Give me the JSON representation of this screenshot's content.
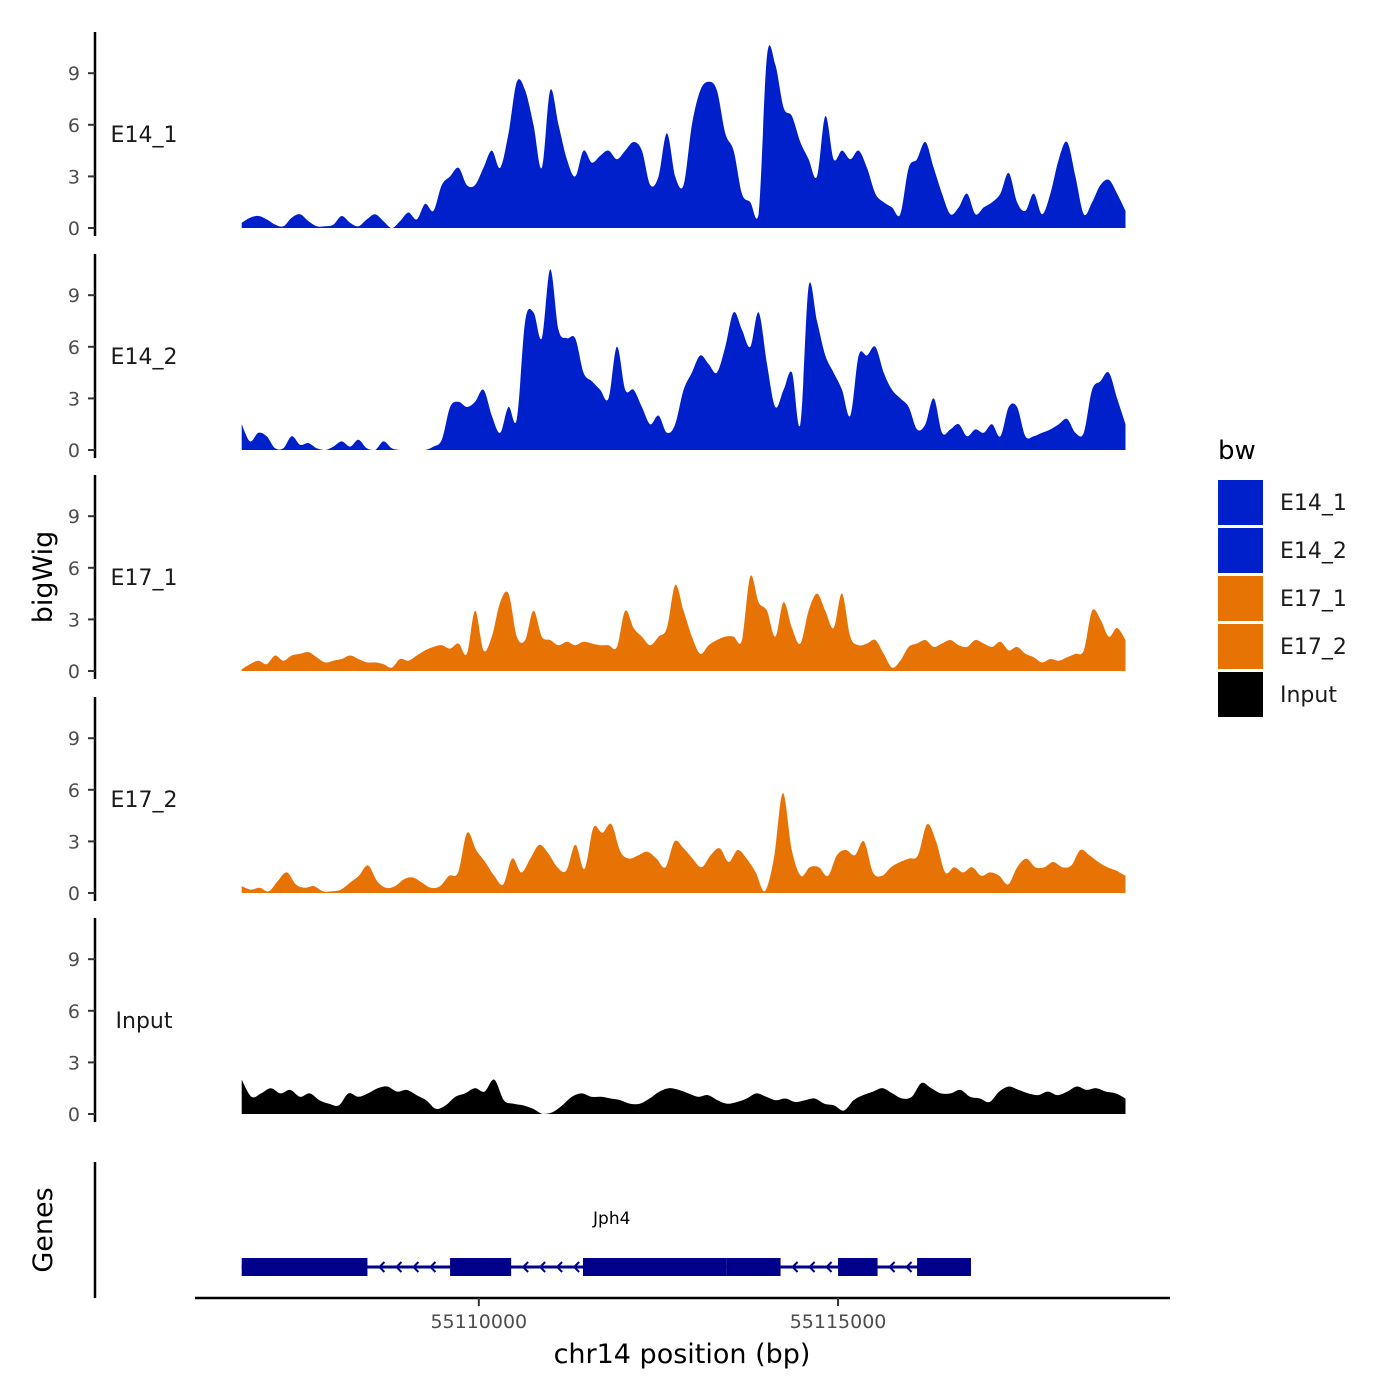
{
  "chart_data": {
    "type": "area",
    "title": "",
    "xlabel": "chr14 position (bp)",
    "ylabel": "bigWig",
    "genes_label": "Genes",
    "xlim": [
      55106050,
      55119620
    ],
    "x_ticks": [
      55110000,
      55115000
    ],
    "x_tick_labels": [
      "55110000",
      "55115000"
    ],
    "ylim": [
      0,
      11.5
    ],
    "y_ticks": [
      0,
      3,
      6,
      9
    ],
    "y_tick_labels": [
      "0",
      "3",
      "6",
      "9"
    ],
    "legend": {
      "title": "bw",
      "position": "right",
      "entries": [
        {
          "name": "E14_1",
          "color": "#0020CC"
        },
        {
          "name": "E14_2",
          "color": "#0020CC"
        },
        {
          "name": "E17_1",
          "color": "#E87305"
        },
        {
          "name": "E17_2",
          "color": "#E87305"
        },
        {
          "name": "Input",
          "color": "#000000"
        }
      ]
    },
    "x_start": 55106700,
    "x_end": 55119000,
    "series": [
      {
        "name": "E14_1",
        "label": "E14_1",
        "color": "#0020CC",
        "values": [
          0.3,
          0.6,
          0.7,
          0.5,
          0.2,
          0.1,
          0.6,
          0.8,
          0.4,
          0.1,
          0.1,
          0.2,
          0.7,
          0.3,
          0.1,
          0.5,
          0.8,
          0.4,
          0.0,
          0.4,
          0.9,
          0.5,
          1.4,
          1.0,
          2.5,
          3.0,
          3.5,
          2.5,
          2.5,
          3.5,
          4.5,
          3.5,
          5.5,
          8.5,
          8.0,
          6.0,
          3.5,
          8.0,
          6.0,
          4.0,
          3.0,
          4.5,
          3.8,
          4.2,
          4.5,
          4.0,
          4.5,
          5.0,
          4.5,
          2.5,
          3.0,
          5.5,
          3.0,
          2.5,
          6.0,
          8.0,
          8.5,
          8.0,
          5.5,
          4.5,
          2.0,
          1.5,
          0.8,
          10.0,
          9.5,
          7.0,
          6.5,
          5.0,
          4.0,
          3.0,
          6.5,
          4.0,
          4.5,
          4.0,
          4.5,
          3.5,
          2.0,
          1.5,
          1.2,
          0.8,
          3.5,
          4.0,
          5.0,
          3.5,
          2.0,
          0.8,
          1.2,
          2.0,
          0.8,
          1.2,
          1.5,
          2.0,
          3.2,
          1.5,
          1.0,
          2.0,
          0.8,
          2.0,
          4.0,
          5.0,
          3.0,
          0.8,
          1.5,
          2.5,
          2.8,
          2.0,
          1.0
        ]
      },
      {
        "name": "E14_2",
        "label": "E14_2",
        "color": "#0020CC",
        "values": [
          1.5,
          0.5,
          1.0,
          0.8,
          0.1,
          0.1,
          0.8,
          0.3,
          0.4,
          0.1,
          0.0,
          0.2,
          0.5,
          0.2,
          0.6,
          0.1,
          0.0,
          0.5,
          0.1,
          0.0,
          0.0,
          0.0,
          0.0,
          0.2,
          0.6,
          2.5,
          2.8,
          2.5,
          2.8,
          3.5,
          2.0,
          1.0,
          2.5,
          1.8,
          7.5,
          8.0,
          6.5,
          10.5,
          7.0,
          6.5,
          6.5,
          4.5,
          4.0,
          3.5,
          3.0,
          6.0,
          3.5,
          3.5,
          2.5,
          1.5,
          2.0,
          1.0,
          1.5,
          3.5,
          4.5,
          5.5,
          5.0,
          4.5,
          6.0,
          8.0,
          7.0,
          6.0,
          8.0,
          5.0,
          2.5,
          3.5,
          4.5,
          1.5,
          9.5,
          7.5,
          5.5,
          4.5,
          3.5,
          2.0,
          5.5,
          5.5,
          6.0,
          4.5,
          3.5,
          3.0,
          2.5,
          1.2,
          1.5,
          3.0,
          1.0,
          1.2,
          1.5,
          0.8,
          1.2,
          1.0,
          1.5,
          0.8,
          2.5,
          2.5,
          0.8,
          0.8,
          1.0,
          1.2,
          1.5,
          1.8,
          1.0,
          1.0,
          3.5,
          4.0,
          4.5,
          3.0,
          1.5
        ]
      },
      {
        "name": "E17_1",
        "label": "E17_1",
        "color": "#E87305",
        "values": [
          0.1,
          0.4,
          0.6,
          0.4,
          0.9,
          0.6,
          0.9,
          1.0,
          1.1,
          0.8,
          0.5,
          0.6,
          0.7,
          0.9,
          0.7,
          0.5,
          0.5,
          0.4,
          0.2,
          0.7,
          0.6,
          0.9,
          1.2,
          1.4,
          1.5,
          1.3,
          1.6,
          1.0,
          3.5,
          1.2,
          2.0,
          4.0,
          4.5,
          2.0,
          1.8,
          3.5,
          2.0,
          1.8,
          1.5,
          1.7,
          1.5,
          1.7,
          1.6,
          1.5,
          1.5,
          1.4,
          3.5,
          2.5,
          2.0,
          1.5,
          2.0,
          2.5,
          5.0,
          3.5,
          2.0,
          1.0,
          1.5,
          1.8,
          2.0,
          2.0,
          1.8,
          5.5,
          4.0,
          3.5,
          2.0,
          4.0,
          2.5,
          1.6,
          3.5,
          4.5,
          3.5,
          2.5,
          4.5,
          2.0,
          1.5,
          1.6,
          1.8,
          1.0,
          0.2,
          0.6,
          1.4,
          1.6,
          1.8,
          1.4,
          1.6,
          1.8,
          1.5,
          1.4,
          1.8,
          1.6,
          1.4,
          1.7,
          1.2,
          1.4,
          1.0,
          0.8,
          0.5,
          0.7,
          0.6,
          0.8,
          1.0,
          1.2,
          3.5,
          3.0,
          2.0,
          2.5,
          1.8
        ]
      },
      {
        "name": "E17_2",
        "label": "E17_2",
        "color": "#E87305",
        "values": [
          0.4,
          0.2,
          0.3,
          0.1,
          0.7,
          1.2,
          0.5,
          0.3,
          0.4,
          0.1,
          0.1,
          0.2,
          0.6,
          1.0,
          1.6,
          0.7,
          0.3,
          0.4,
          0.8,
          0.9,
          0.6,
          0.3,
          0.4,
          1.0,
          1.2,
          3.5,
          2.5,
          1.8,
          1.0,
          0.5,
          2.0,
          1.2,
          2.0,
          2.8,
          2.3,
          1.5,
          1.3,
          2.8,
          1.4,
          3.8,
          3.5,
          4.0,
          2.4,
          2.0,
          2.2,
          2.4,
          2.0,
          1.5,
          3.0,
          2.6,
          2.0,
          1.5,
          2.2,
          2.6,
          1.8,
          2.5,
          2.0,
          1.2,
          0.1,
          2.0,
          5.8,
          2.5,
          1.0,
          1.5,
          1.5,
          1.0,
          2.2,
          2.5,
          2.2,
          3.0,
          1.2,
          1.0,
          1.5,
          1.8,
          2.0,
          2.2,
          4.0,
          3.0,
          1.2,
          1.5,
          1.2,
          1.5,
          1.0,
          1.2,
          1.0,
          0.5,
          1.5,
          2.0,
          1.5,
          1.5,
          1.8,
          1.5,
          1.6,
          2.5,
          2.2,
          1.8,
          1.5,
          1.3,
          1.0
        ]
      },
      {
        "name": "Input",
        "label": "Input",
        "color": "#000000",
        "values": [
          2.0,
          1.0,
          1.2,
          1.5,
          1.2,
          1.4,
          1.0,
          1.2,
          0.8,
          0.6,
          0.5,
          1.2,
          1.0,
          1.2,
          1.5,
          1.6,
          1.3,
          1.4,
          1.1,
          0.8,
          0.3,
          0.5,
          1.0,
          1.2,
          1.5,
          1.3,
          2.0,
          0.8,
          0.6,
          0.5,
          0.3,
          0.0,
          0.1,
          0.5,
          1.0,
          1.2,
          1.0,
          1.0,
          0.9,
          0.8,
          0.6,
          0.6,
          0.9,
          1.3,
          1.5,
          1.4,
          1.2,
          1.0,
          1.1,
          0.8,
          0.6,
          0.7,
          0.9,
          1.2,
          1.0,
          0.8,
          0.9,
          0.7,
          0.8,
          0.9,
          0.6,
          0.5,
          0.2,
          0.8,
          1.1,
          1.3,
          1.5,
          1.2,
          0.9,
          1.0,
          1.8,
          1.5,
          1.2,
          1.2,
          1.4,
          1.0,
          0.9,
          0.7,
          1.3,
          1.6,
          1.4,
          1.2,
          1.1,
          1.3,
          1.1,
          1.3,
          1.6,
          1.4,
          1.5,
          1.3,
          1.2,
          0.9
        ]
      }
    ],
    "genes": [
      {
        "name": "Jph4",
        "strand": "-",
        "color": "#00008B",
        "start": 55106700,
        "end": 55116850,
        "exons": [
          [
            55106700,
            55106850
          ],
          [
            55106850,
            55108450
          ],
          [
            55109600,
            55110100
          ],
          [
            55110100,
            55110450
          ],
          [
            55111450,
            55113450
          ],
          [
            55113450,
            55114200
          ],
          [
            55115000,
            55115550
          ],
          [
            55116100,
            55116850
          ]
        ]
      }
    ]
  }
}
